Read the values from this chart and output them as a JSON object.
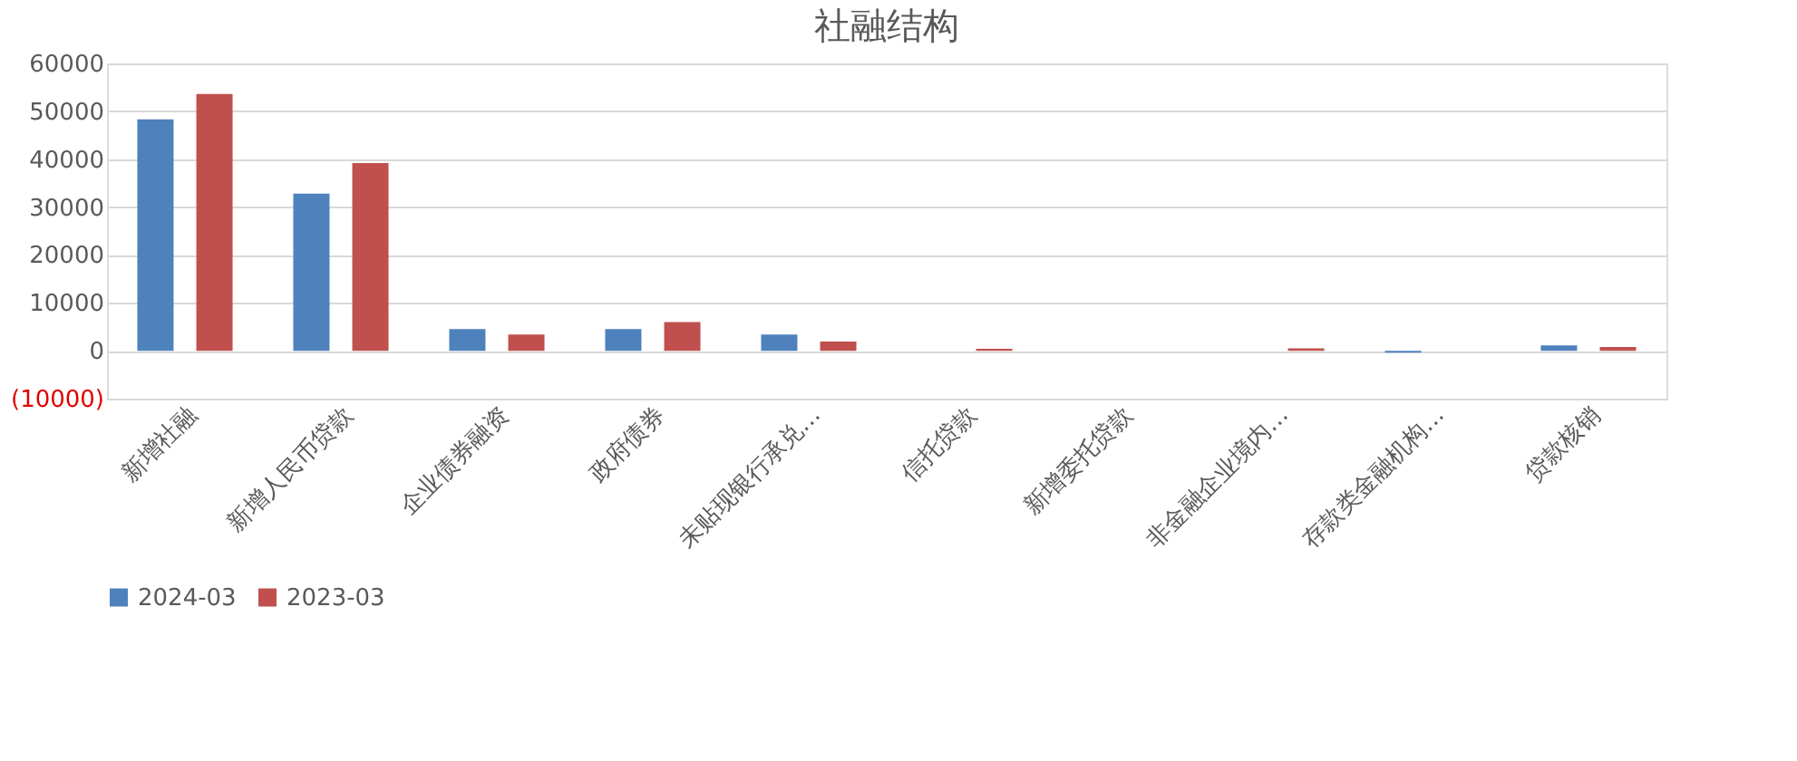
{
  "chart_data": {
    "type": "bar",
    "title": "社融结构",
    "categories": [
      "新增社融",
      "新增人民币贷款",
      "企业债券融资",
      "政府债券",
      "未贴现银行承兑…",
      "信托贷款",
      "新增委托贷款",
      "非金融企业境内…",
      "存款类金融机构…",
      "贷款核销"
    ],
    "series": [
      {
        "name": "2024-03",
        "color": "#4f81bd",
        "values": [
          48300,
          32800,
          4500,
          4500,
          3400,
          0,
          0,
          0,
          -400,
          1100
        ]
      },
      {
        "name": "2023-03",
        "color": "#c0504d",
        "values": [
          53600,
          39200,
          3400,
          6000,
          1900,
          400,
          0,
          500,
          0,
          800
        ]
      }
    ],
    "ylim": [
      -10000,
      60000
    ],
    "yticks": [
      {
        "value": -10000,
        "label": "(10000)"
      },
      0,
      10000,
      20000,
      30000,
      40000,
      50000,
      60000
    ],
    "grid": "y",
    "legend": "bottom"
  }
}
